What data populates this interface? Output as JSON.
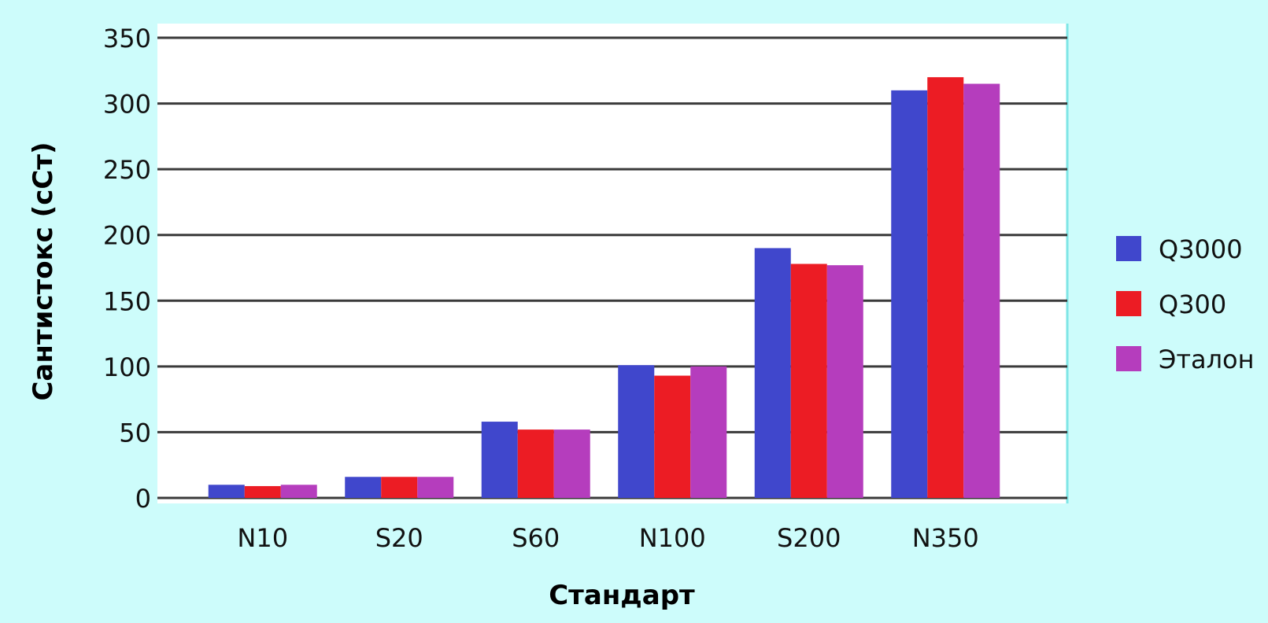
{
  "colors": {
    "background": "#cdfcfb",
    "plot_area": "#ffffff",
    "gridline": "#3a3a3a",
    "series": [
      "#4047cc",
      "#ec1c24",
      "#b53dbd"
    ]
  },
  "chart_data": {
    "type": "bar",
    "title": "",
    "xlabel": "Стандарт",
    "ylabel": "Сантистокс (сСт)",
    "categories": [
      "N10",
      "S20",
      "S60",
      "N100",
      "S200",
      "N350"
    ],
    "series": [
      {
        "name": "Q3000",
        "values": [
          10,
          16,
          58,
          101,
          190,
          310
        ]
      },
      {
        "name": "Q300",
        "values": [
          9,
          16,
          52,
          93,
          178,
          320
        ]
      },
      {
        "name": "Эталон",
        "values": [
          10,
          16,
          52,
          100,
          177,
          315
        ]
      }
    ],
    "yticks": [
      "0",
      "50",
      "100",
      "150",
      "200",
      "250",
      "300",
      "350"
    ],
    "ylim": [
      0,
      350
    ],
    "grid": true,
    "legend_position": "right"
  }
}
